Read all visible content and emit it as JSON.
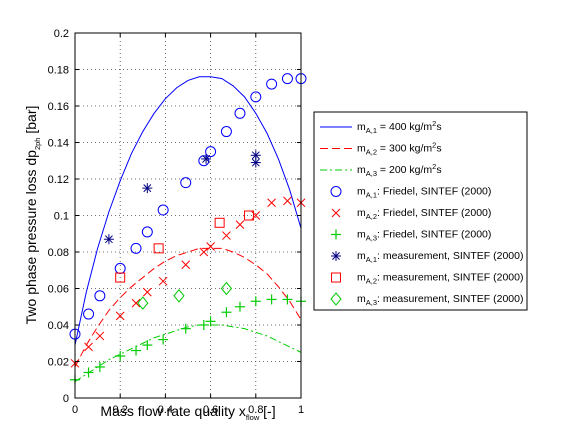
{
  "chart_data": {
    "type": "line",
    "xlabel": {
      "main": "Mass flow rate quality x",
      "sub": "flow",
      "end": " [-]"
    },
    "ylabel": {
      "main": "Two phase pressure loss dp",
      "sub": "2ph",
      "end": " [bar]"
    },
    "xlim": [
      0,
      1
    ],
    "ylim": [
      0,
      0.2
    ],
    "grid": "dotted",
    "legend_position": "outside-right",
    "x_ticks": [
      0,
      0.2,
      0.4,
      0.6,
      0.8,
      1
    ],
    "x_tick_labels": [
      "0",
      "0.2",
      "0.4",
      "0.6",
      "0.8",
      "1"
    ],
    "y_ticks": [
      0,
      0.02,
      0.04,
      0.06,
      0.08,
      0.1,
      0.12,
      0.14,
      0.16,
      0.18,
      0.2
    ],
    "y_tick_labels": [
      "0",
      "0.02",
      "0.04",
      "0.06",
      "0.08",
      "0.1",
      "0.12",
      "0.14",
      "0.16",
      "0.18",
      "0.2"
    ],
    "series": [
      {
        "legend": {
          "pre": "m",
          "sub": "A,1",
          "post": " = 400 kg/m",
          "sup": "2",
          "tail": "s"
        },
        "color": "#0000ff",
        "style": "solid",
        "marker": "none",
        "x": [
          0,
          0.05,
          0.1,
          0.15,
          0.2,
          0.25,
          0.3,
          0.35,
          0.4,
          0.45,
          0.5,
          0.55,
          0.6,
          0.65,
          0.7,
          0.75,
          0.8,
          0.85,
          0.9,
          0.95,
          1.0
        ],
        "y": [
          0.029,
          0.058,
          0.082,
          0.102,
          0.119,
          0.134,
          0.146,
          0.156,
          0.164,
          0.17,
          0.174,
          0.176,
          0.176,
          0.175,
          0.171,
          0.165,
          0.156,
          0.145,
          0.131,
          0.114,
          0.093
        ]
      },
      {
        "legend": {
          "pre": "m",
          "sub": "A,2",
          "post": " = 300 kg/m",
          "sup": "2",
          "tail": "s"
        },
        "color": "#ff0000",
        "style": "dashed",
        "marker": "none",
        "x": [
          0,
          0.05,
          0.1,
          0.15,
          0.2,
          0.25,
          0.3,
          0.35,
          0.4,
          0.45,
          0.5,
          0.55,
          0.6,
          0.65,
          0.7,
          0.75,
          0.8,
          0.85,
          0.9,
          0.95,
          1.0
        ],
        "y": [
          0.017,
          0.029,
          0.039,
          0.048,
          0.055,
          0.061,
          0.066,
          0.071,
          0.075,
          0.078,
          0.08,
          0.082,
          0.082,
          0.082,
          0.08,
          0.077,
          0.073,
          0.068,
          0.061,
          0.053,
          0.043
        ]
      },
      {
        "legend": {
          "pre": "m",
          "sub": "A,3",
          "post": " = 200 kg/m",
          "sup": "2",
          "tail": "s"
        },
        "color": "#00cc00",
        "style": "dashdot",
        "marker": "none",
        "x": [
          0,
          0.05,
          0.1,
          0.15,
          0.2,
          0.25,
          0.3,
          0.35,
          0.4,
          0.45,
          0.5,
          0.55,
          0.6,
          0.65,
          0.7,
          0.75,
          0.8,
          0.85,
          0.9,
          0.95,
          1.0
        ],
        "y": [
          0.009,
          0.013,
          0.017,
          0.021,
          0.024,
          0.027,
          0.03,
          0.033,
          0.035,
          0.037,
          0.039,
          0.04,
          0.04,
          0.04,
          0.039,
          0.038,
          0.036,
          0.034,
          0.031,
          0.028,
          0.025
        ]
      },
      {
        "legend": {
          "pre": "m",
          "sub": "A,1",
          "post": ": Friedel, SINTEF (2000)",
          "sup": "",
          "tail": ""
        },
        "color": "#0000ff",
        "style": "none",
        "marker": "circle",
        "x": [
          0,
          0.06,
          0.11,
          0.2,
          0.27,
          0.32,
          0.39,
          0.49,
          0.57,
          0.6,
          0.67,
          0.73,
          0.8,
          0.87,
          0.94,
          1.0
        ],
        "y": [
          0.035,
          0.046,
          0.056,
          0.071,
          0.082,
          0.091,
          0.103,
          0.118,
          0.13,
          0.135,
          0.146,
          0.156,
          0.165,
          0.172,
          0.175,
          0.175
        ]
      },
      {
        "legend": {
          "pre": "m",
          "sub": "A,2",
          "post": ": Friedel, SINTEF (2000)",
          "sup": "",
          "tail": ""
        },
        "color": "#ff0000",
        "style": "none",
        "marker": "x",
        "x": [
          0,
          0.06,
          0.11,
          0.2,
          0.27,
          0.32,
          0.39,
          0.49,
          0.57,
          0.6,
          0.67,
          0.73,
          0.8,
          0.87,
          0.94,
          1.0
        ],
        "y": [
          0.019,
          0.028,
          0.034,
          0.045,
          0.052,
          0.058,
          0.064,
          0.073,
          0.08,
          0.083,
          0.089,
          0.095,
          0.1,
          0.107,
          0.108,
          0.107
        ]
      },
      {
        "legend": {
          "pre": "m",
          "sub": "A,3",
          "post": ": Friedel, SINTEF (2000)",
          "sup": "",
          "tail": ""
        },
        "color": "#00cc00",
        "style": "none",
        "marker": "plus",
        "x": [
          0,
          0.06,
          0.11,
          0.2,
          0.27,
          0.32,
          0.39,
          0.49,
          0.57,
          0.6,
          0.67,
          0.73,
          0.8,
          0.87,
          0.94,
          1.0
        ],
        "y": [
          0.01,
          0.014,
          0.017,
          0.023,
          0.026,
          0.029,
          0.032,
          0.038,
          0.04,
          0.042,
          0.047,
          0.05,
          0.053,
          0.054,
          0.054,
          0.053
        ]
      },
      {
        "legend": {
          "pre": "m",
          "sub": "A,1",
          "post": ": measurement, SINTEF (2000)",
          "sup": "",
          "tail": ""
        },
        "color": "#000080",
        "style": "none",
        "marker": "star",
        "x": [
          0.15,
          0.32,
          0.58,
          0.8,
          0.8
        ],
        "y": [
          0.087,
          0.115,
          0.131,
          0.129,
          0.133
        ]
      },
      {
        "legend": {
          "pre": "m",
          "sub": "A,2",
          "post": ": measurement, SINTEF (2000)",
          "sup": "",
          "tail": ""
        },
        "color": "#ff0000",
        "style": "none",
        "marker": "square",
        "x": [
          0.2,
          0.37,
          0.64,
          0.77
        ],
        "y": [
          0.066,
          0.082,
          0.096,
          0.1
        ]
      },
      {
        "legend": {
          "pre": "m",
          "sub": "A,3",
          "post": ": measurement, SINTEF (2000)",
          "sup": "",
          "tail": ""
        },
        "color": "#00cc00",
        "style": "none",
        "marker": "diamond",
        "x": [
          0.3,
          0.46,
          0.67
        ],
        "y": [
          0.052,
          0.056,
          0.06
        ]
      }
    ]
  }
}
